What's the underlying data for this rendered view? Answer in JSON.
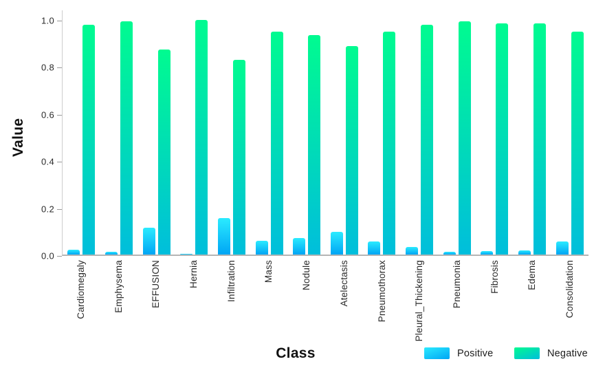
{
  "chart_data": {
    "type": "bar",
    "title": "",
    "xlabel": "Class",
    "ylabel": "Value",
    "categories": [
      "Cardiomegaly",
      "Emphysema",
      "EFFUSION",
      "Hernia",
      "Infiltration",
      "Mass",
      "Nodule",
      "Atelectasis",
      "Pneumothorax",
      "Pleural_Thickening",
      "Pneumonia",
      "Fibrosis",
      "Edema",
      "Consolidation"
    ],
    "series": [
      {
        "name": "Positive",
        "color_top": "#2BEBFF",
        "color_bottom": "#00A5F4",
        "values": [
          0.02,
          0.012,
          0.115,
          0.002,
          0.155,
          0.058,
          0.069,
          0.096,
          0.056,
          0.033,
          0.011,
          0.016,
          0.018,
          0.055
        ]
      },
      {
        "name": "Negative",
        "color_top": "#00FB90",
        "color_bottom": "#00BEDC",
        "values": [
          0.977,
          0.99,
          0.87,
          0.998,
          0.827,
          0.948,
          0.933,
          0.886,
          0.948,
          0.977,
          0.99,
          0.982,
          0.982,
          0.948
        ]
      }
    ],
    "ylim": [
      0,
      1
    ],
    "y_ticks": [
      "0.0",
      "0.2",
      "0.4",
      "0.6",
      "0.8",
      "1.0"
    ],
    "grid": false,
    "legend_position": "bottom-right"
  }
}
